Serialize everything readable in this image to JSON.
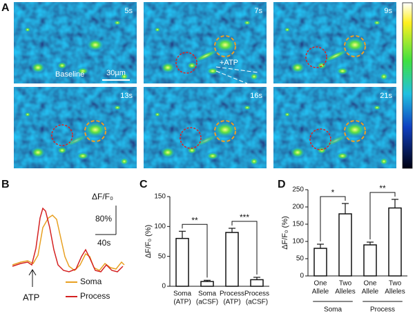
{
  "panel_a": {
    "label": "A",
    "times": [
      "5s",
      "7s",
      "9s",
      "13s",
      "16s",
      "21s"
    ],
    "baseline": "Baseline",
    "scale_bar": "30µm",
    "stimulus": "+ATP"
  },
  "panel_b": {
    "label": "B",
    "ylabel": "ΔF/F₀",
    "scale_y": "80%",
    "scale_x": "40s",
    "stimulus": "ATP",
    "legend": [
      {
        "name": "Soma",
        "color": "#e8a020"
      },
      {
        "name": "Process",
        "color": "#d42020"
      }
    ]
  },
  "chart_data": [
    {
      "type": "bar",
      "label": "C",
      "ylabel": "ΔF/F₀ (%)",
      "categories": [
        [
          "Soma",
          "(ATP)"
        ],
        [
          "Soma",
          "(aCSF)"
        ],
        [
          "Process",
          "(ATP)"
        ],
        [
          "Process",
          "(aCSF)"
        ]
      ],
      "values": [
        80,
        8,
        90,
        11
      ],
      "errors": [
        12,
        2,
        7,
        4
      ],
      "ylim": [
        0,
        150
      ],
      "yticks": [
        0,
        50,
        100,
        150
      ],
      "significance": [
        "**",
        "***"
      ]
    },
    {
      "type": "bar",
      "label": "D",
      "ylabel": "ΔF/F₀ (%)",
      "categories": [
        [
          "One",
          "Allele"
        ],
        [
          "Two",
          "Alleles"
        ],
        [
          "One",
          "Allele"
        ],
        [
          "Two",
          "Alleles"
        ]
      ],
      "values": [
        80,
        180,
        90,
        197
      ],
      "errors": [
        12,
        30,
        8,
        25
      ],
      "ylim": [
        0,
        250
      ],
      "yticks": [
        0,
        50,
        100,
        150,
        200,
        250
      ],
      "significance": [
        "*",
        "**"
      ],
      "groups": [
        "Soma",
        "Process"
      ]
    }
  ]
}
